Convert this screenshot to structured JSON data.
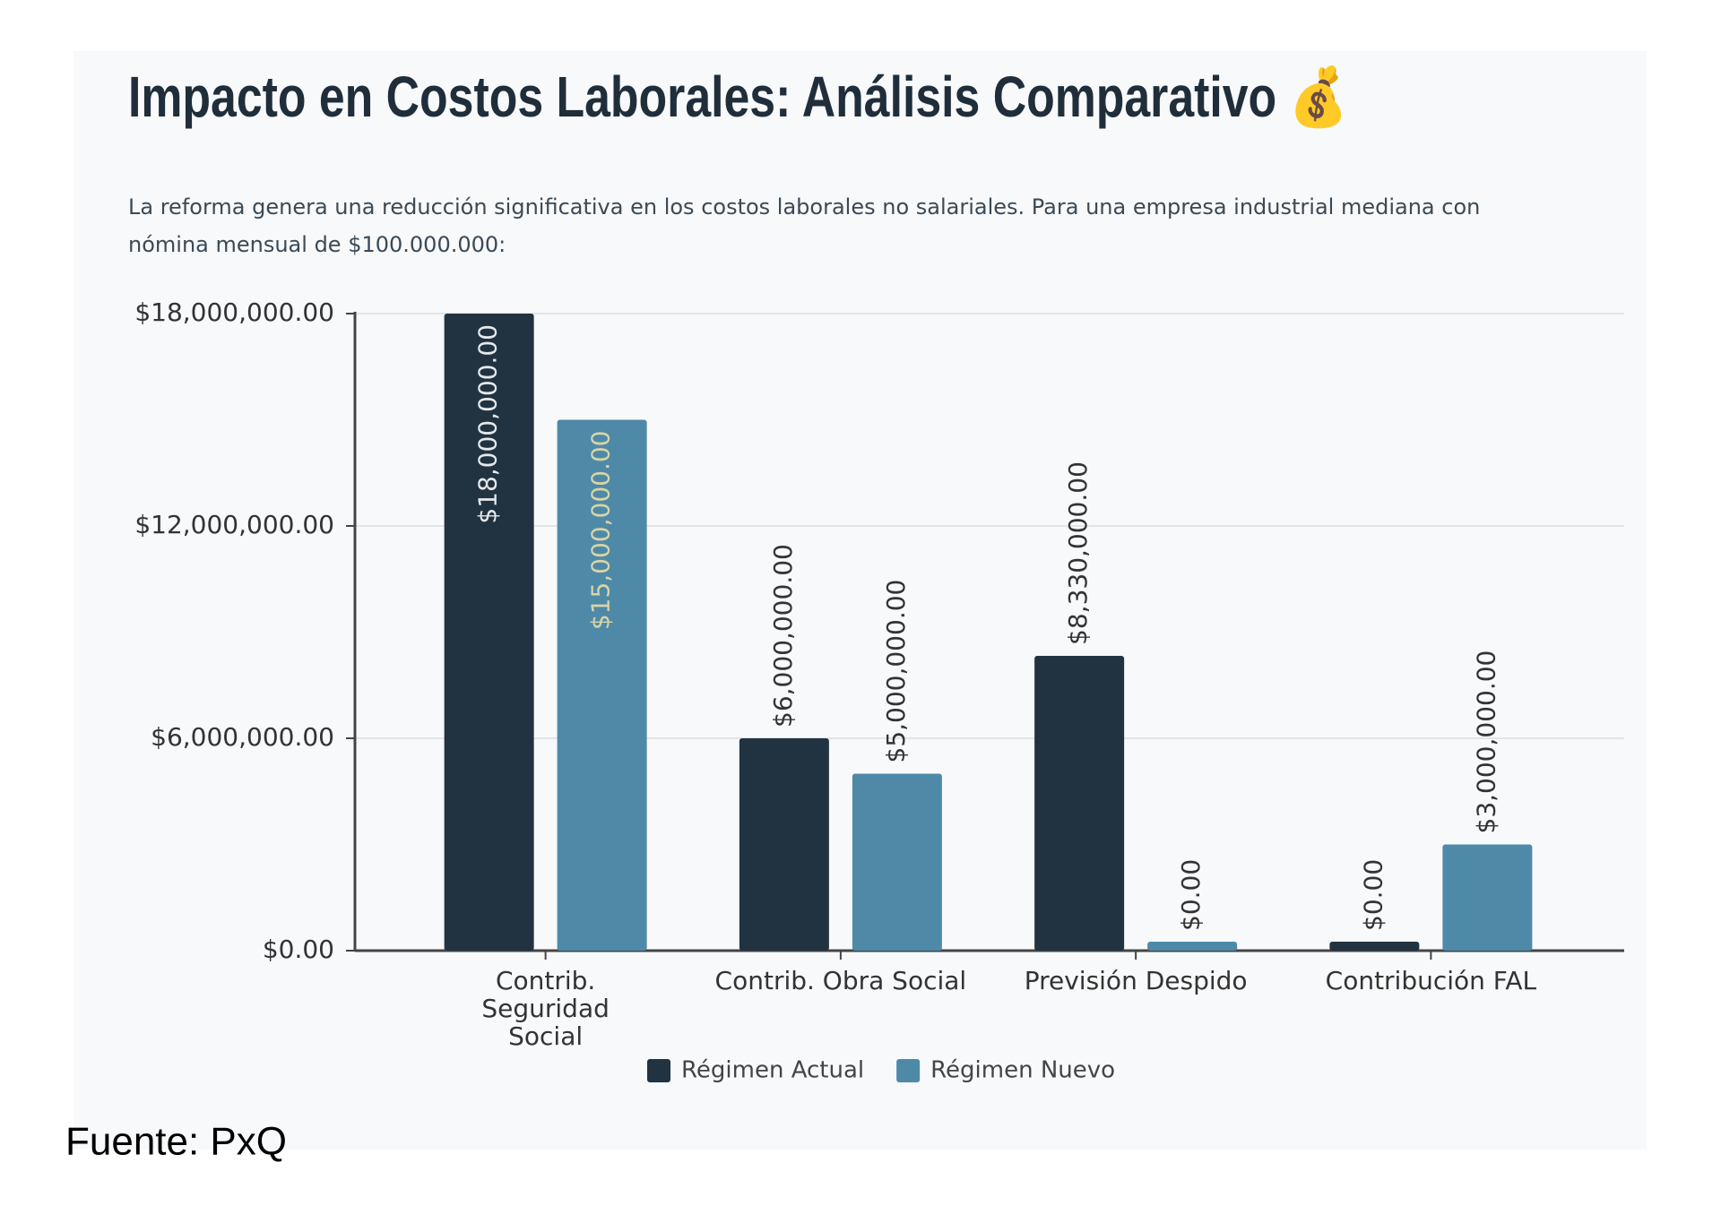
{
  "chart_data": {
    "type": "bar",
    "title": "Impacto en Costos Laborales: Análisis Comparativo 💰",
    "subtitle": "La reforma genera una reducción significativa en los costos laborales no salariales. Para una empresa industrial mediana con nómina mensual de $100.000.000:",
    "categories": [
      [
        "Contrib.",
        "Seguridad",
        "Social"
      ],
      [
        "Contrib. Obra Social"
      ],
      [
        "Previsión Despido"
      ],
      [
        "Contribución FAL"
      ]
    ],
    "series": [
      {
        "name": "Régimen Actual",
        "color": "#213341",
        "values": [
          18000000,
          6000000,
          8330000,
          0
        ],
        "value_labels": [
          "$18,000,000.00",
          "$6,000,000.00",
          "$8,330,000.00",
          "$0.00"
        ]
      },
      {
        "name": "Régimen Nuevo",
        "color": "#4e8aa8",
        "values": [
          15000000,
          5000000,
          0,
          3000000
        ],
        "value_labels": [
          "$15,000,000.00",
          "$5,000,000.00",
          "$0.00",
          "$3,000,000.00"
        ]
      }
    ],
    "ylim": [
      0,
      18000000
    ],
    "yticks": [
      {
        "value": 0,
        "label": "$0.00"
      },
      {
        "value": 6000000,
        "label": "$6,000,000.00"
      },
      {
        "value": 12000000,
        "label": "$12,000,000.00"
      },
      {
        "value": 18000000,
        "label": "$18,000,000.00"
      }
    ],
    "grid": true,
    "legend": "bottom",
    "source": "Fuente: PxQ"
  }
}
